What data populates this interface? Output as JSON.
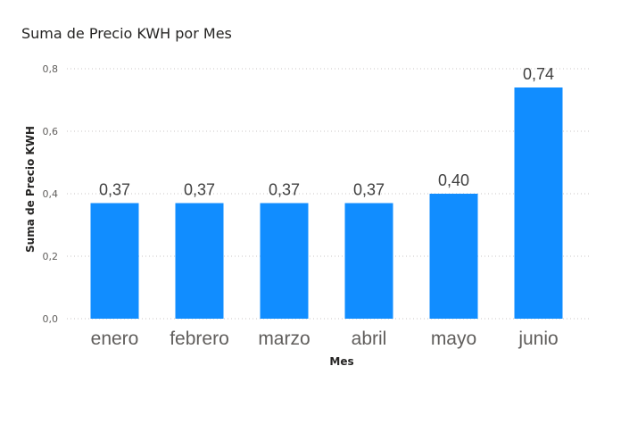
{
  "chart_data": {
    "type": "bar",
    "title": "Suma de Precio KWH por Mes",
    "xlabel": "Mes",
    "ylabel": "Suma de Precio KWH",
    "categories": [
      "enero",
      "febrero",
      "marzo",
      "abril",
      "mayo",
      "junio"
    ],
    "values": [
      0.37,
      0.37,
      0.37,
      0.37,
      0.4,
      0.74
    ],
    "data_labels": [
      "0,37",
      "0,37",
      "0,37",
      "0,37",
      "0,40",
      "0,74"
    ],
    "ylim": [
      0,
      0.8
    ],
    "yticks": [
      0,
      0.2,
      0.4,
      0.6,
      0.8
    ],
    "ytick_labels": [
      "0,0",
      "0,2",
      "0,4",
      "0,6",
      "0,8"
    ],
    "bar_color": "#118DFF",
    "grid": true,
    "legend": "none"
  }
}
